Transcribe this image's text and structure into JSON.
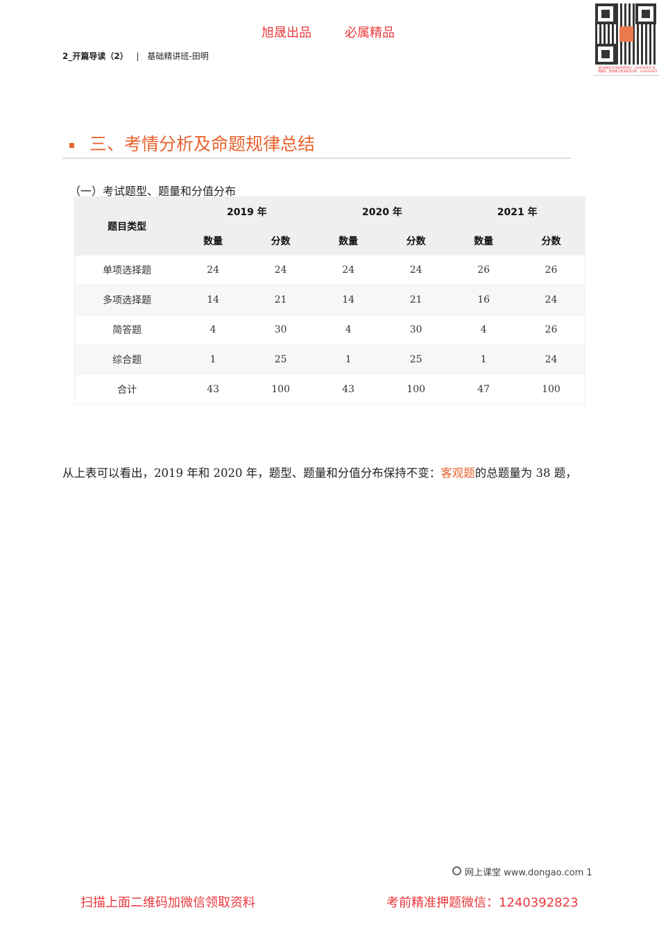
{
  "banner": {
    "left": "旭晟出品",
    "right": "必属精品"
  },
  "header": {
    "chapter": "2_开篇导读（2）",
    "separator": "|",
    "course": "基础精讲班-田明"
  },
  "qr": {
    "caption": "请扫描微信号领取免费资料：1240392823 免费解析、免费赠与更多新资讯等：1240392823"
  },
  "section": {
    "title": "三、考情分析及命题规律总结",
    "subtitle": "（一）考试题型、题量和分值分布"
  },
  "table": {
    "type_header": "题目类型",
    "years": [
      "2019 年",
      "2020 年",
      "2021 年"
    ],
    "sub_headers": [
      "数量",
      "分数",
      "数量",
      "分数",
      "数量",
      "分数"
    ],
    "rows": [
      {
        "type": "单项选择题",
        "values": [
          "24",
          "24",
          "24",
          "24",
          "26",
          "26"
        ]
      },
      {
        "type": "多项选择题",
        "values": [
          "14",
          "21",
          "14",
          "21",
          "16",
          "24"
        ]
      },
      {
        "type": "简答题",
        "values": [
          "4",
          "30",
          "4",
          "30",
          "4",
          "26"
        ]
      },
      {
        "type": "综合题",
        "values": [
          "1",
          "25",
          "1",
          "25",
          "1",
          "24"
        ]
      },
      {
        "type": "合计",
        "values": [
          "43",
          "100",
          "43",
          "100",
          "47",
          "100"
        ]
      }
    ]
  },
  "paragraph": {
    "before": "从上表可以看出，2019 年和 2020 年，题型、题量和分值分布保持不变：",
    "highlight": "客观题",
    "after": "的总题量为 38 题，"
  },
  "footer": {
    "site": "网上课堂 www.dongao.com 1"
  },
  "bottom": {
    "left": "扫描上面二维码加微信领取资料",
    "right": "考前精准押题微信：1240392823"
  },
  "colors": {
    "accent": "#e8622d",
    "brand_red": "#e8383d"
  }
}
